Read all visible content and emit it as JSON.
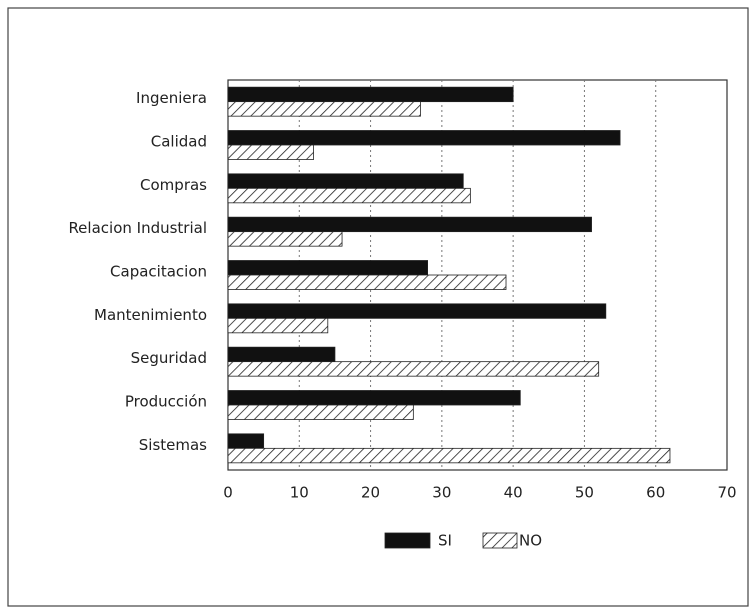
{
  "chart_data": {
    "type": "hbar",
    "categories": [
      "Ingeniera",
      "Calidad",
      "Compras",
      "Relacion Industrial",
      "Capacitacion",
      "Mantenimiento",
      "Seguridad",
      "Producción",
      "Sistemas"
    ],
    "series": [
      {
        "name": "SI",
        "color": "#111111",
        "pattern": "solid",
        "values": [
          40,
          55,
          33,
          51,
          28,
          53,
          15,
          41,
          5
        ]
      },
      {
        "name": "NO",
        "color": "#222222",
        "pattern": "hatch",
        "values": [
          27,
          12,
          34,
          16,
          39,
          14,
          52,
          26,
          62
        ]
      }
    ],
    "xlim": [
      0,
      70
    ],
    "xticks": [
      0,
      10,
      20,
      30,
      40,
      50,
      60,
      70
    ],
    "grid": true,
    "legend": "bottom"
  }
}
